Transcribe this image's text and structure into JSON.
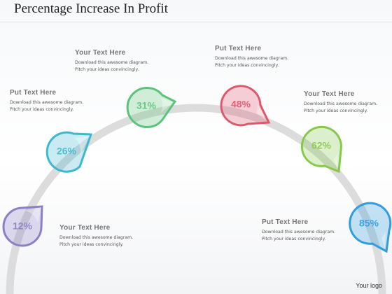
{
  "title": "Percentage Increase In Profit",
  "logo": "Your logo",
  "colors": {
    "arc": "#dcdcdc",
    "purple": "#8c7fc6",
    "teal": "#3fb8cf",
    "green": "#5cc47a",
    "red": "#e0576b",
    "lime": "#86c94a",
    "blue": "#2f9de0"
  },
  "markers": [
    {
      "value": "12%",
      "color": "#8c7fc6"
    },
    {
      "value": "26%",
      "color": "#3fb8cf"
    },
    {
      "value": "31%",
      "color": "#5cc47a"
    },
    {
      "value": "48%",
      "color": "#e0576b"
    },
    {
      "value": "62%",
      "color": "#86c94a"
    },
    {
      "value": "85%",
      "color": "#2f9de0"
    }
  ],
  "captions": [
    {
      "heading": "Your Text Here",
      "line1": "Download this awesome diagram.",
      "line2": "Pitch your ideas convincingly."
    },
    {
      "heading": "Put Text Here",
      "line1": "Download this awesome diagram.",
      "line2": "Pitch your ideas convincingly."
    },
    {
      "heading": "Your Text Here",
      "line1": "Download this awesome diagram.",
      "line2": "Pitch your ideas convincingly."
    },
    {
      "heading": "Put Text Here",
      "line1": "Download this awesome diagram.",
      "line2": "Pitch your ideas convincingly."
    },
    {
      "heading": "Your Text Here",
      "line1": "Download this awesome diagram.",
      "line2": "Pitch your ideas convincingly."
    },
    {
      "heading": "Put Text Here",
      "line1": "Download this awesome diagram.",
      "line2": "Pitch your ideas convincingly."
    }
  ]
}
